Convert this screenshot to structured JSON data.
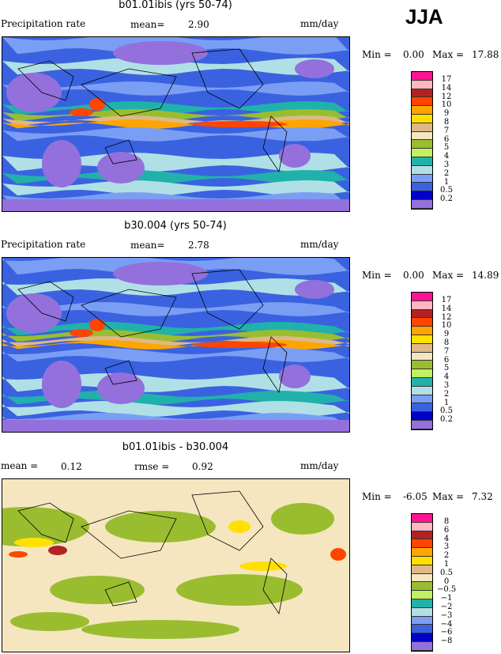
{
  "season": "JJA",
  "panels": [
    {
      "title": "b01.01ibis (yrs 50-74)",
      "left": "Precipitation rate",
      "mean_label": "mean=",
      "mean": "2.90",
      "units": "mm/day",
      "min_label": "Min =",
      "min": "0.00",
      "max_label": "Max =",
      "max": "17.88",
      "levels": [
        "17",
        "14",
        "12",
        "10",
        "9",
        "8",
        "7",
        "6",
        "5",
        "4",
        "3",
        "2",
        "1",
        "0.5",
        "0.2"
      ]
    },
    {
      "title": "b30.004 (yrs 50-74)",
      "left": "Precipitation rate",
      "mean_label": "mean=",
      "mean": "2.78",
      "units": "mm/day",
      "min_label": "Min =",
      "min": "0.00",
      "max_label": "Max =",
      "max": "14.89",
      "levels": [
        "17",
        "14",
        "12",
        "10",
        "9",
        "8",
        "7",
        "6",
        "5",
        "4",
        "3",
        "2",
        "1",
        "0.5",
        "0.2"
      ]
    },
    {
      "title": "b01.01ibis - b30.004",
      "left": "mean =",
      "mean_label": "",
      "mean": "0.12",
      "rmse_label": "rmse =",
      "rmse": "0.92",
      "units": "mm/day",
      "min_label": "Min =",
      "min": "-6.05",
      "max_label": "Max =",
      "max": "7.32",
      "levels": [
        "8",
        "6",
        "4",
        "3",
        "2",
        "1",
        "0.5",
        "0",
        "−0.5",
        "−1",
        "−2",
        "−3",
        "−4",
        "−6",
        "−8"
      ]
    }
  ],
  "colors": [
    "#ff1493",
    "#ffb6c1",
    "#b22222",
    "#ff4500",
    "#ffa500",
    "#ffe000",
    "#deb887",
    "#f5e6c0",
    "#9abd30",
    "#c2f060",
    "#20b2aa",
    "#b0e0e6",
    "#7b9ef5",
    "#3a62e0",
    "#0000c8",
    "#9370db"
  ]
}
